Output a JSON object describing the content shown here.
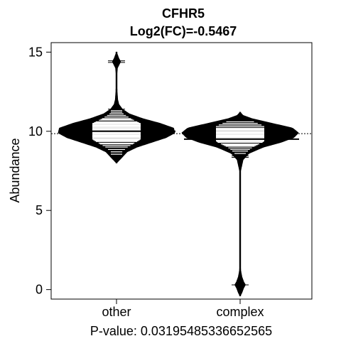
{
  "chart_data": {
    "type": "beanplot",
    "title": "CFHR5",
    "subtitle": "Log2(FC)=-0.5467",
    "xlabel": "P-value: 0.0319548533665256​5",
    "ylabel": "Abundance",
    "ylim": [
      -0.6,
      15.6
    ],
    "yticks": [
      0,
      5,
      10,
      15
    ],
    "categories": [
      "other",
      "complex"
    ],
    "overall_mean": 9.85,
    "grid": false,
    "series": [
      {
        "name": "other",
        "mean": 10.0,
        "range": [
          8.0,
          15.0
        ],
        "density_profile": [
          [
            8.0,
            0.0
          ],
          [
            8.3,
            0.08
          ],
          [
            8.7,
            0.18
          ],
          [
            9.0,
            0.35
          ],
          [
            9.3,
            0.6
          ],
          [
            9.6,
            0.85
          ],
          [
            9.9,
            1.0
          ],
          [
            10.2,
            0.98
          ],
          [
            10.5,
            0.75
          ],
          [
            10.8,
            0.45
          ],
          [
            11.1,
            0.22
          ],
          [
            11.4,
            0.1
          ],
          [
            11.7,
            0.04
          ],
          [
            12.0,
            0.02
          ],
          [
            12.5,
            0.01
          ],
          [
            13.5,
            0.005
          ],
          [
            14.0,
            0.015
          ],
          [
            14.4,
            0.07
          ],
          [
            14.6,
            0.04
          ],
          [
            15.0,
            0.0
          ]
        ],
        "observations": [
          8.55,
          8.7,
          8.85,
          9.0,
          9.1,
          9.2,
          9.25,
          9.35,
          9.4,
          9.45,
          9.5,
          9.55,
          9.6,
          9.65,
          9.7,
          9.72,
          9.75,
          9.8,
          9.85,
          9.88,
          9.9,
          9.95,
          10.0,
          10.02,
          10.05,
          10.1,
          10.15,
          10.2,
          10.25,
          10.3,
          10.35,
          10.4,
          10.45,
          10.5,
          10.55,
          10.6,
          10.7,
          10.75,
          10.8,
          10.9,
          11.0,
          11.1,
          11.2,
          11.3,
          11.4,
          14.35,
          14.45
        ]
      },
      {
        "name": "complex",
        "mean": 9.5,
        "range": [
          -0.4,
          11.2
        ],
        "density_profile": [
          [
            -0.4,
            0.0
          ],
          [
            -0.2,
            0.03
          ],
          [
            0.1,
            0.06
          ],
          [
            0.3,
            0.09
          ],
          [
            0.5,
            0.06
          ],
          [
            0.8,
            0.03
          ],
          [
            1.2,
            0.01
          ],
          [
            2.0,
            0.004
          ],
          [
            4.0,
            0.003
          ],
          [
            6.0,
            0.003
          ],
          [
            7.5,
            0.008
          ],
          [
            8.2,
            0.05
          ],
          [
            8.6,
            0.15
          ],
          [
            9.0,
            0.4
          ],
          [
            9.3,
            0.7
          ],
          [
            9.6,
            0.92
          ],
          [
            9.9,
            1.0
          ],
          [
            10.2,
            0.9
          ],
          [
            10.5,
            0.55
          ],
          [
            10.8,
            0.2
          ],
          [
            11.0,
            0.05
          ],
          [
            11.2,
            0.0
          ]
        ],
        "observations": [
          0.3,
          8.35,
          8.45,
          8.6,
          8.75,
          8.85,
          8.95,
          9.05,
          9.1,
          9.15,
          9.2,
          9.3,
          9.35,
          9.4,
          9.45,
          9.5,
          9.55,
          9.6,
          9.65,
          9.7,
          9.75,
          9.8,
          9.85,
          9.9,
          9.95,
          10.0,
          10.05,
          10.1,
          10.15,
          10.2,
          10.3,
          10.4,
          10.5,
          10.6
        ]
      }
    ]
  }
}
